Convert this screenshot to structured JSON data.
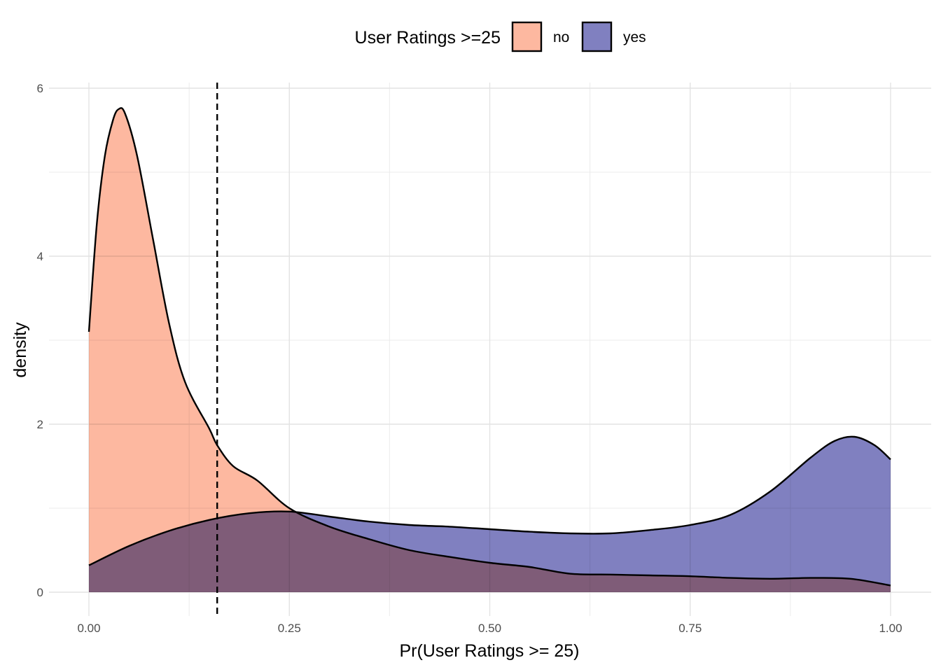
{
  "chart_data": {
    "type": "area",
    "xlabel": "Pr(User Ratings >= 25)",
    "ylabel": "density",
    "xlim": [
      0,
      1
    ],
    "ylim": [
      0,
      6
    ],
    "x_ticks": [
      0.0,
      0.25,
      0.5,
      0.75,
      1.0
    ],
    "x_tick_labels": [
      "0.00",
      "0.25",
      "0.50",
      "0.75",
      "1.00"
    ],
    "y_ticks": [
      0,
      2,
      4,
      6
    ],
    "y_tick_labels": [
      "0",
      "2",
      "4",
      "6"
    ],
    "grid": true,
    "legend": {
      "title": "User Ratings >=25",
      "placement": "top"
    },
    "threshold_line": {
      "x": 0.16,
      "style": "dashed"
    },
    "series": [
      {
        "name": "no",
        "color": "#FDB8A0",
        "points": [
          [
            0.0,
            3.1
          ],
          [
            0.01,
            4.4
          ],
          [
            0.02,
            5.2
          ],
          [
            0.03,
            5.62
          ],
          [
            0.037,
            5.75
          ],
          [
            0.045,
            5.7
          ],
          [
            0.06,
            5.2
          ],
          [
            0.08,
            4.2
          ],
          [
            0.1,
            3.2
          ],
          [
            0.12,
            2.5
          ],
          [
            0.15,
            1.95
          ],
          [
            0.16,
            1.75
          ],
          [
            0.18,
            1.5
          ],
          [
            0.21,
            1.33
          ],
          [
            0.25,
            1.0
          ],
          [
            0.3,
            0.78
          ],
          [
            0.35,
            0.63
          ],
          [
            0.4,
            0.5
          ],
          [
            0.45,
            0.42
          ],
          [
            0.5,
            0.35
          ],
          [
            0.55,
            0.3
          ],
          [
            0.6,
            0.22
          ],
          [
            0.65,
            0.21
          ],
          [
            0.7,
            0.2
          ],
          [
            0.75,
            0.19
          ],
          [
            0.8,
            0.17
          ],
          [
            0.85,
            0.16
          ],
          [
            0.9,
            0.17
          ],
          [
            0.95,
            0.16
          ],
          [
            1.0,
            0.08
          ]
        ]
      },
      {
        "name": "yes",
        "color": "#8080C0",
        "points": [
          [
            0.0,
            0.32
          ],
          [
            0.05,
            0.55
          ],
          [
            0.1,
            0.73
          ],
          [
            0.15,
            0.86
          ],
          [
            0.2,
            0.94
          ],
          [
            0.25,
            0.96
          ],
          [
            0.3,
            0.9
          ],
          [
            0.35,
            0.84
          ],
          [
            0.4,
            0.8
          ],
          [
            0.45,
            0.78
          ],
          [
            0.5,
            0.75
          ],
          [
            0.55,
            0.72
          ],
          [
            0.6,
            0.7
          ],
          [
            0.65,
            0.7
          ],
          [
            0.7,
            0.74
          ],
          [
            0.75,
            0.8
          ],
          [
            0.8,
            0.92
          ],
          [
            0.85,
            1.2
          ],
          [
            0.9,
            1.6
          ],
          [
            0.93,
            1.8
          ],
          [
            0.955,
            1.85
          ],
          [
            0.98,
            1.75
          ],
          [
            1.0,
            1.58
          ]
        ]
      }
    ]
  }
}
